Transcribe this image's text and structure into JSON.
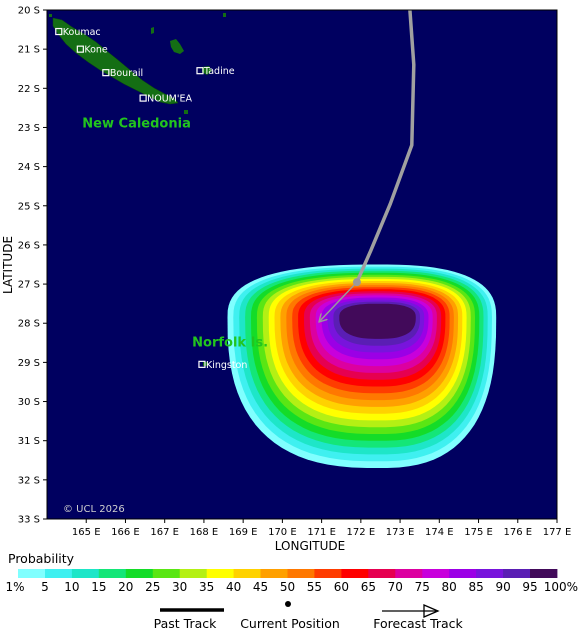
{
  "map": {
    "background_color": "#000060",
    "land_color": "#146e14",
    "lon_range": [
      164,
      177
    ],
    "lat_range": [
      20,
      33
    ],
    "lat_ticks": [
      "20 S",
      "21 S",
      "22 S",
      "23 S",
      "24 S",
      "25 S",
      "26 S",
      "27 S",
      "28 S",
      "29 S",
      "30 S",
      "31 S",
      "32 S",
      "33 S"
    ],
    "lon_ticks": [
      "165 E",
      "166 E",
      "167 E",
      "168 E",
      "169 E",
      "170 E",
      "171 E",
      "172 E",
      "173 E",
      "174 E",
      "175 E",
      "176 E",
      "177 E"
    ],
    "x_axis_title": "LONGITUDE",
    "y_axis_title": "LATITUDE",
    "copyright": "© UCL 2026",
    "regions": [
      {
        "name": "New Caledonia",
        "lon": 164.9,
        "lat": 23.0
      },
      {
        "name": "Norfolk Is.",
        "lon": 167.7,
        "lat": 28.6
      }
    ],
    "towns": [
      {
        "name": "Koumac",
        "lon": 164.3,
        "lat": 20.55
      },
      {
        "name": "Kone",
        "lon": 164.85,
        "lat": 21.0
      },
      {
        "name": "Bourail",
        "lon": 165.5,
        "lat": 21.6
      },
      {
        "name": "NOUM'EA",
        "lon": 166.45,
        "lat": 22.25
      },
      {
        "name": "Tadine",
        "lon": 167.9,
        "lat": 21.55
      },
      {
        "name": "Kingston",
        "lon": 167.95,
        "lat": 29.05
      }
    ],
    "past_track": [
      [
        173.25,
        20.0
      ],
      [
        173.35,
        21.4
      ],
      [
        173.3,
        23.45
      ],
      [
        172.75,
        24.95
      ],
      [
        172.25,
        26.15
      ],
      [
        171.9,
        26.95
      ]
    ],
    "current_position": [
      171.9,
      26.95
    ],
    "forecast_track": [
      [
        171.9,
        26.95
      ],
      [
        170.95,
        27.95
      ]
    ],
    "probability_field": {
      "center": [
        172.45,
        27.85
      ],
      "core_extent": {
        "west": 1.0,
        "east": 0.95,
        "north": 0.35,
        "south": 0.55
      },
      "outer_extent": {
        "west": 3.85,
        "east": 3.0,
        "north": 1.35,
        "south": 3.85
      },
      "core_value": 99
    }
  },
  "legend": {
    "title": "Probability",
    "ticks": [
      "1%",
      "5",
      "10",
      "15",
      "20",
      "25",
      "30",
      "35",
      "40",
      "45",
      "50",
      "55",
      "60",
      "65",
      "70",
      "75",
      "80",
      "85",
      "90",
      "95",
      "100%"
    ],
    "colors": [
      "#80ffff",
      "#3ff0f0",
      "#1ee6c8",
      "#14e678",
      "#14dc28",
      "#5ae614",
      "#b4f014",
      "#ffff00",
      "#ffd200",
      "#ffa000",
      "#ff7800",
      "#ff3c00",
      "#ff0000",
      "#e60050",
      "#dc00a0",
      "#c800dc",
      "#9b00e6",
      "#7814dc",
      "#5a1eb4",
      "#420a5a"
    ]
  },
  "key": {
    "past_track_label": "Past Track",
    "current_position_label": "Current Position",
    "forecast_track_label": "Forecast Track"
  }
}
